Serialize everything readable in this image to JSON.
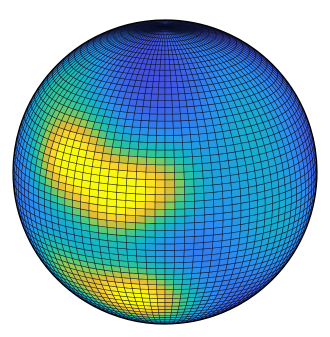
{
  "figure": {
    "subject": "sphere-surface-plot",
    "colormap": [
      "#3e26a8",
      "#4353e0",
      "#2b8ef0",
      "#14b3c8",
      "#2cc69a",
      "#8fcb55",
      "#e7ba34",
      "#fcd92a",
      "#f9fb0e"
    ],
    "background": "#ffffff",
    "mesh_color": "#0a0a1e",
    "outline_color": "#000000",
    "view_tilt_deg": 17,
    "grid": {
      "lat_bands": 64,
      "lon_bands": 96
    },
    "hotspots": [
      {
        "lat": 18,
        "lon": -42,
        "amp": 1.0,
        "width_deg": 12
      },
      {
        "lat": 6,
        "lon": -20,
        "amp": 0.95,
        "width_deg": 11
      },
      {
        "lat": 12,
        "lon": -2,
        "amp": 0.55,
        "width_deg": 10
      },
      {
        "lat": -40,
        "lon": -14,
        "amp": 1.0,
        "width_deg": 13
      },
      {
        "lat": -30,
        "lon": -48,
        "amp": 0.5,
        "width_deg": 12
      },
      {
        "lat": 38,
        "lon": -70,
        "amp": 0.35,
        "width_deg": 14
      },
      {
        "lat": 30,
        "lon": 40,
        "amp": 0.22,
        "width_deg": 16
      },
      {
        "lat": -10,
        "lon": 52,
        "amp": 0.18,
        "width_deg": 18
      }
    ]
  }
}
